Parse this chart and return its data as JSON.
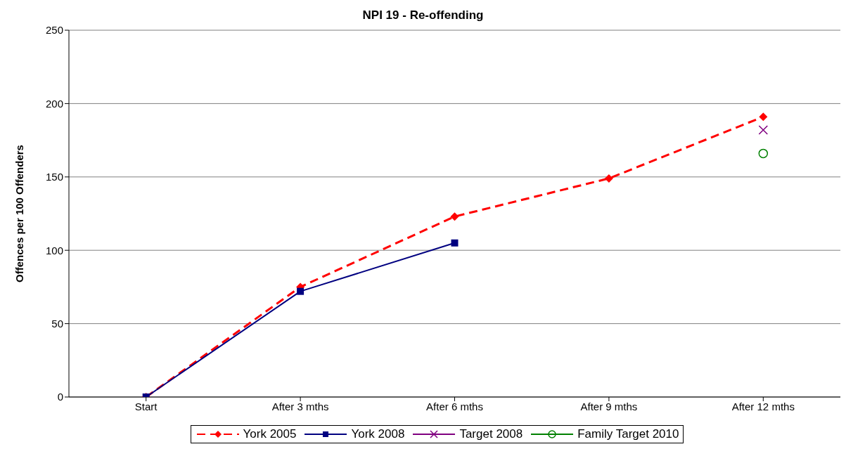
{
  "chart_data": {
    "type": "line",
    "title": "NPI 19 - Re-offending",
    "ylabel": "Offences per 100 Offenders",
    "categories": [
      "Start",
      "After 3 mths",
      "After 6 mths",
      "After 9 mths",
      "After 12 mths"
    ],
    "series": [
      {
        "name": "York 2005",
        "color": "#ff0000",
        "marker": "diamond",
        "line_style": "dashed",
        "values": [
          0,
          75,
          123,
          149,
          191
        ]
      },
      {
        "name": "York 2008",
        "color": "#000080",
        "marker": "square",
        "line_style": "solid",
        "values": [
          0,
          72,
          105,
          null,
          null
        ]
      },
      {
        "name": "Target 2008",
        "color": "#800080",
        "marker": "cross",
        "line_style": "solid",
        "values": [
          null,
          null,
          null,
          null,
          182
        ]
      },
      {
        "name": "Family Target 2010",
        "color": "#008000",
        "marker": "circle",
        "line_style": "solid",
        "values": [
          null,
          null,
          null,
          null,
          166
        ]
      }
    ],
    "ylim": [
      0,
      250
    ],
    "yticks": [
      0,
      50,
      100,
      150,
      200,
      250
    ],
    "grid": "y",
    "legend": "bottom"
  }
}
